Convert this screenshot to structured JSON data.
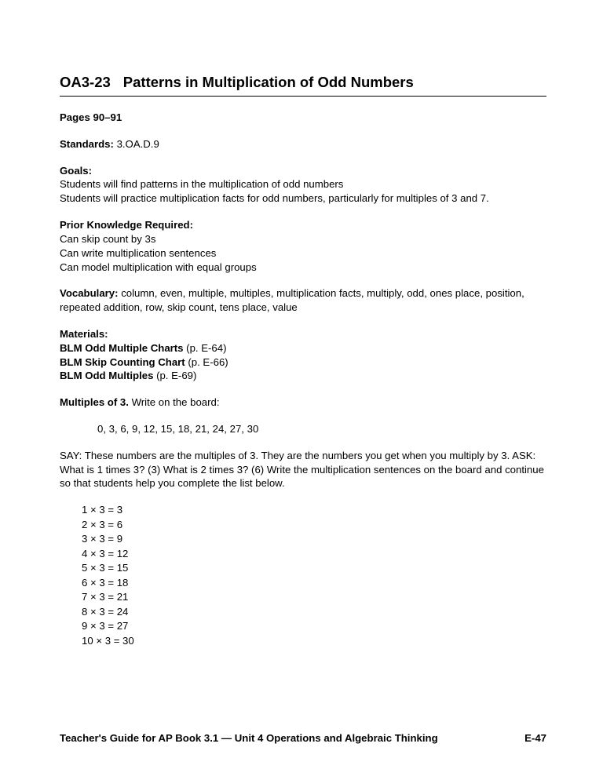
{
  "title": {
    "code": "OA3-23",
    "text": "Patterns in Multiplication of Odd Numbers"
  },
  "pages": {
    "label": "Pages 90–91"
  },
  "standards": {
    "label": "Standards:",
    "value": "3.OA.D.9"
  },
  "goals": {
    "label": "Goals:",
    "lines": [
      "Students will find patterns in the multiplication of odd numbers",
      "Students will practice multiplication facts for odd numbers, particularly for multiples of 3 and 7."
    ]
  },
  "prior": {
    "label": "Prior Knowledge Required:",
    "lines": [
      "Can skip count by 3s",
      "Can write multiplication sentences",
      "Can model multiplication with equal groups"
    ]
  },
  "vocab": {
    "label": "Vocabulary:",
    "text": "column, even, multiple, multiples, multiplication facts, multiply, odd, ones place, position, repeated addition, row, skip count, tens place, value"
  },
  "materials": {
    "label": "Materials:",
    "items": [
      {
        "bold": "BLM Odd Multiple Charts",
        "rest": " (p. E-64)"
      },
      {
        "bold": "BLM Skip Counting Chart",
        "rest": "  (p. E-66)"
      },
      {
        "bold": "BLM Odd Multiples",
        "rest": " (p. E-69)"
      }
    ]
  },
  "multiples3": {
    "label": "Multiples of 3.",
    "rest": " Write on the board:"
  },
  "sequence": "0, 3, 6, 9, 12, 15, 18, 21, 24, 27, 30",
  "say": "SAY: These numbers are the multiples of 3. They are the numbers you get when you multiply by 3. ASK: What is 1 times 3? (3) What is 2 times 3? (6) Write the multiplication sentences on the board and continue so that students help you complete the list below.",
  "equations": [
    "1 × 3 = 3",
    "2 × 3 = 6",
    "3 × 3 = 9",
    "4 × 3 = 12",
    "5 × 3 = 15",
    "6 × 3 = 18",
    "7 × 3 = 21",
    "8 × 3 = 24",
    "9 × 3 = 27",
    "10 × 3 = 30"
  ],
  "footer": {
    "left": "Teacher's Guide for AP Book 3.1 — Unit 4 Operations and Algebraic Thinking",
    "right": "E-47"
  }
}
